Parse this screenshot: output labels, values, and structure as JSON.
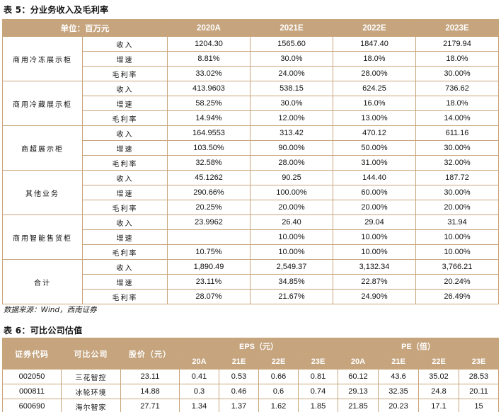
{
  "table5": {
    "title": "表 5：分业务收入及毛利率",
    "header": {
      "unit": "单位：百万元",
      "years": [
        "2020A",
        "2021E",
        "2022E",
        "2023E"
      ]
    },
    "segments": [
      {
        "name": "商用冷冻展示柜",
        "rows": [
          {
            "metric": "收入",
            "values": [
              "1204.30",
              "1565.60",
              "1847.40",
              "2179.94"
            ]
          },
          {
            "metric": "增速",
            "values": [
              "8.81%",
              "30.0%",
              "18.0%",
              "18.0%"
            ]
          },
          {
            "metric": "毛利率",
            "values": [
              "33.02%",
              "24.00%",
              "28.00%",
              "30.00%"
            ]
          }
        ]
      },
      {
        "name": "商用冷藏展示柜",
        "rows": [
          {
            "metric": "收入",
            "values": [
              "413.9603",
              "538.15",
              "624.25",
              "736.62"
            ]
          },
          {
            "metric": "增速",
            "values": [
              "58.25%",
              "30.0%",
              "16.0%",
              "18.0%"
            ]
          },
          {
            "metric": "毛利率",
            "values": [
              "14.94%",
              "12.00%",
              "13.00%",
              "14.00%"
            ]
          }
        ]
      },
      {
        "name": "商超展示柜",
        "rows": [
          {
            "metric": "收入",
            "values": [
              "164.9553",
              "313.42",
              "470.12",
              "611.16"
            ]
          },
          {
            "metric": "增速",
            "values": [
              "103.50%",
              "90.00%",
              "50.00%",
              "30.00%"
            ]
          },
          {
            "metric": "毛利率",
            "values": [
              "32.58%",
              "28.00%",
              "31.00%",
              "32.00%"
            ]
          }
        ]
      },
      {
        "name": "其他业务",
        "rows": [
          {
            "metric": "收入",
            "values": [
              "45.1262",
              "90.25",
              "144.40",
              "187.72"
            ]
          },
          {
            "metric": "增速",
            "values": [
              "290.66%",
              "100.00%",
              "60.00%",
              "30.00%"
            ]
          },
          {
            "metric": "毛利率",
            "values": [
              "20.25%",
              "20.00%",
              "20.00%",
              "20.00%"
            ]
          }
        ]
      },
      {
        "name": "商用智能售货柜",
        "rows": [
          {
            "metric": "收入",
            "values": [
              "23.9962",
              "26.40",
              "29.04",
              "31.94"
            ]
          },
          {
            "metric": "增速",
            "values": [
              "",
              "10.00%",
              "10.00%",
              "10.00%"
            ]
          },
          {
            "metric": "毛利率",
            "values": [
              "10.75%",
              "10.00%",
              "10.00%",
              "10.00%"
            ]
          }
        ]
      },
      {
        "name": "合计",
        "rows": [
          {
            "metric": "收入",
            "values": [
              "1,890.49",
              "2,549.37",
              "3,132.34",
              "3,766.21"
            ]
          },
          {
            "metric": "增速",
            "values": [
              "23.11%",
              "34.85%",
              "22.87%",
              "20.24%"
            ]
          },
          {
            "metric": "毛利率",
            "values": [
              "28.07%",
              "21.67%",
              "24.90%",
              "26.49%"
            ]
          }
        ]
      }
    ],
    "source": "数据来源：Wind，西南证券"
  },
  "table6": {
    "title": "表 6：可比公司估值",
    "header": {
      "code": "证券代码",
      "company": "可比公司",
      "price": "股价（元）",
      "eps_group": "EPS（元）",
      "pe_group": "PE（倍）",
      "years": [
        "20A",
        "21E",
        "22E",
        "23E"
      ]
    },
    "rows": [
      {
        "code": "002050",
        "company": "三花智控",
        "price": "23.11",
        "eps": [
          "0.41",
          "0.53",
          "0.66",
          "0.81"
        ],
        "pe": [
          "60.12",
          "43.6",
          "35.02",
          "28.53"
        ]
      },
      {
        "code": "000811",
        "company": "冰轮环境",
        "price": "14.88",
        "eps": [
          "0.3",
          "0.46",
          "0.6",
          "0.74"
        ],
        "pe": [
          "29.13",
          "32.35",
          "24.8",
          "20.11"
        ]
      },
      {
        "code": "600690",
        "company": "海尔智家",
        "price": "27.71",
        "eps": [
          "1.34",
          "1.37",
          "1.62",
          "1.85"
        ],
        "pe": [
          "21.85",
          "20.23",
          "17.1",
          "15"
        ]
      }
    ]
  }
}
